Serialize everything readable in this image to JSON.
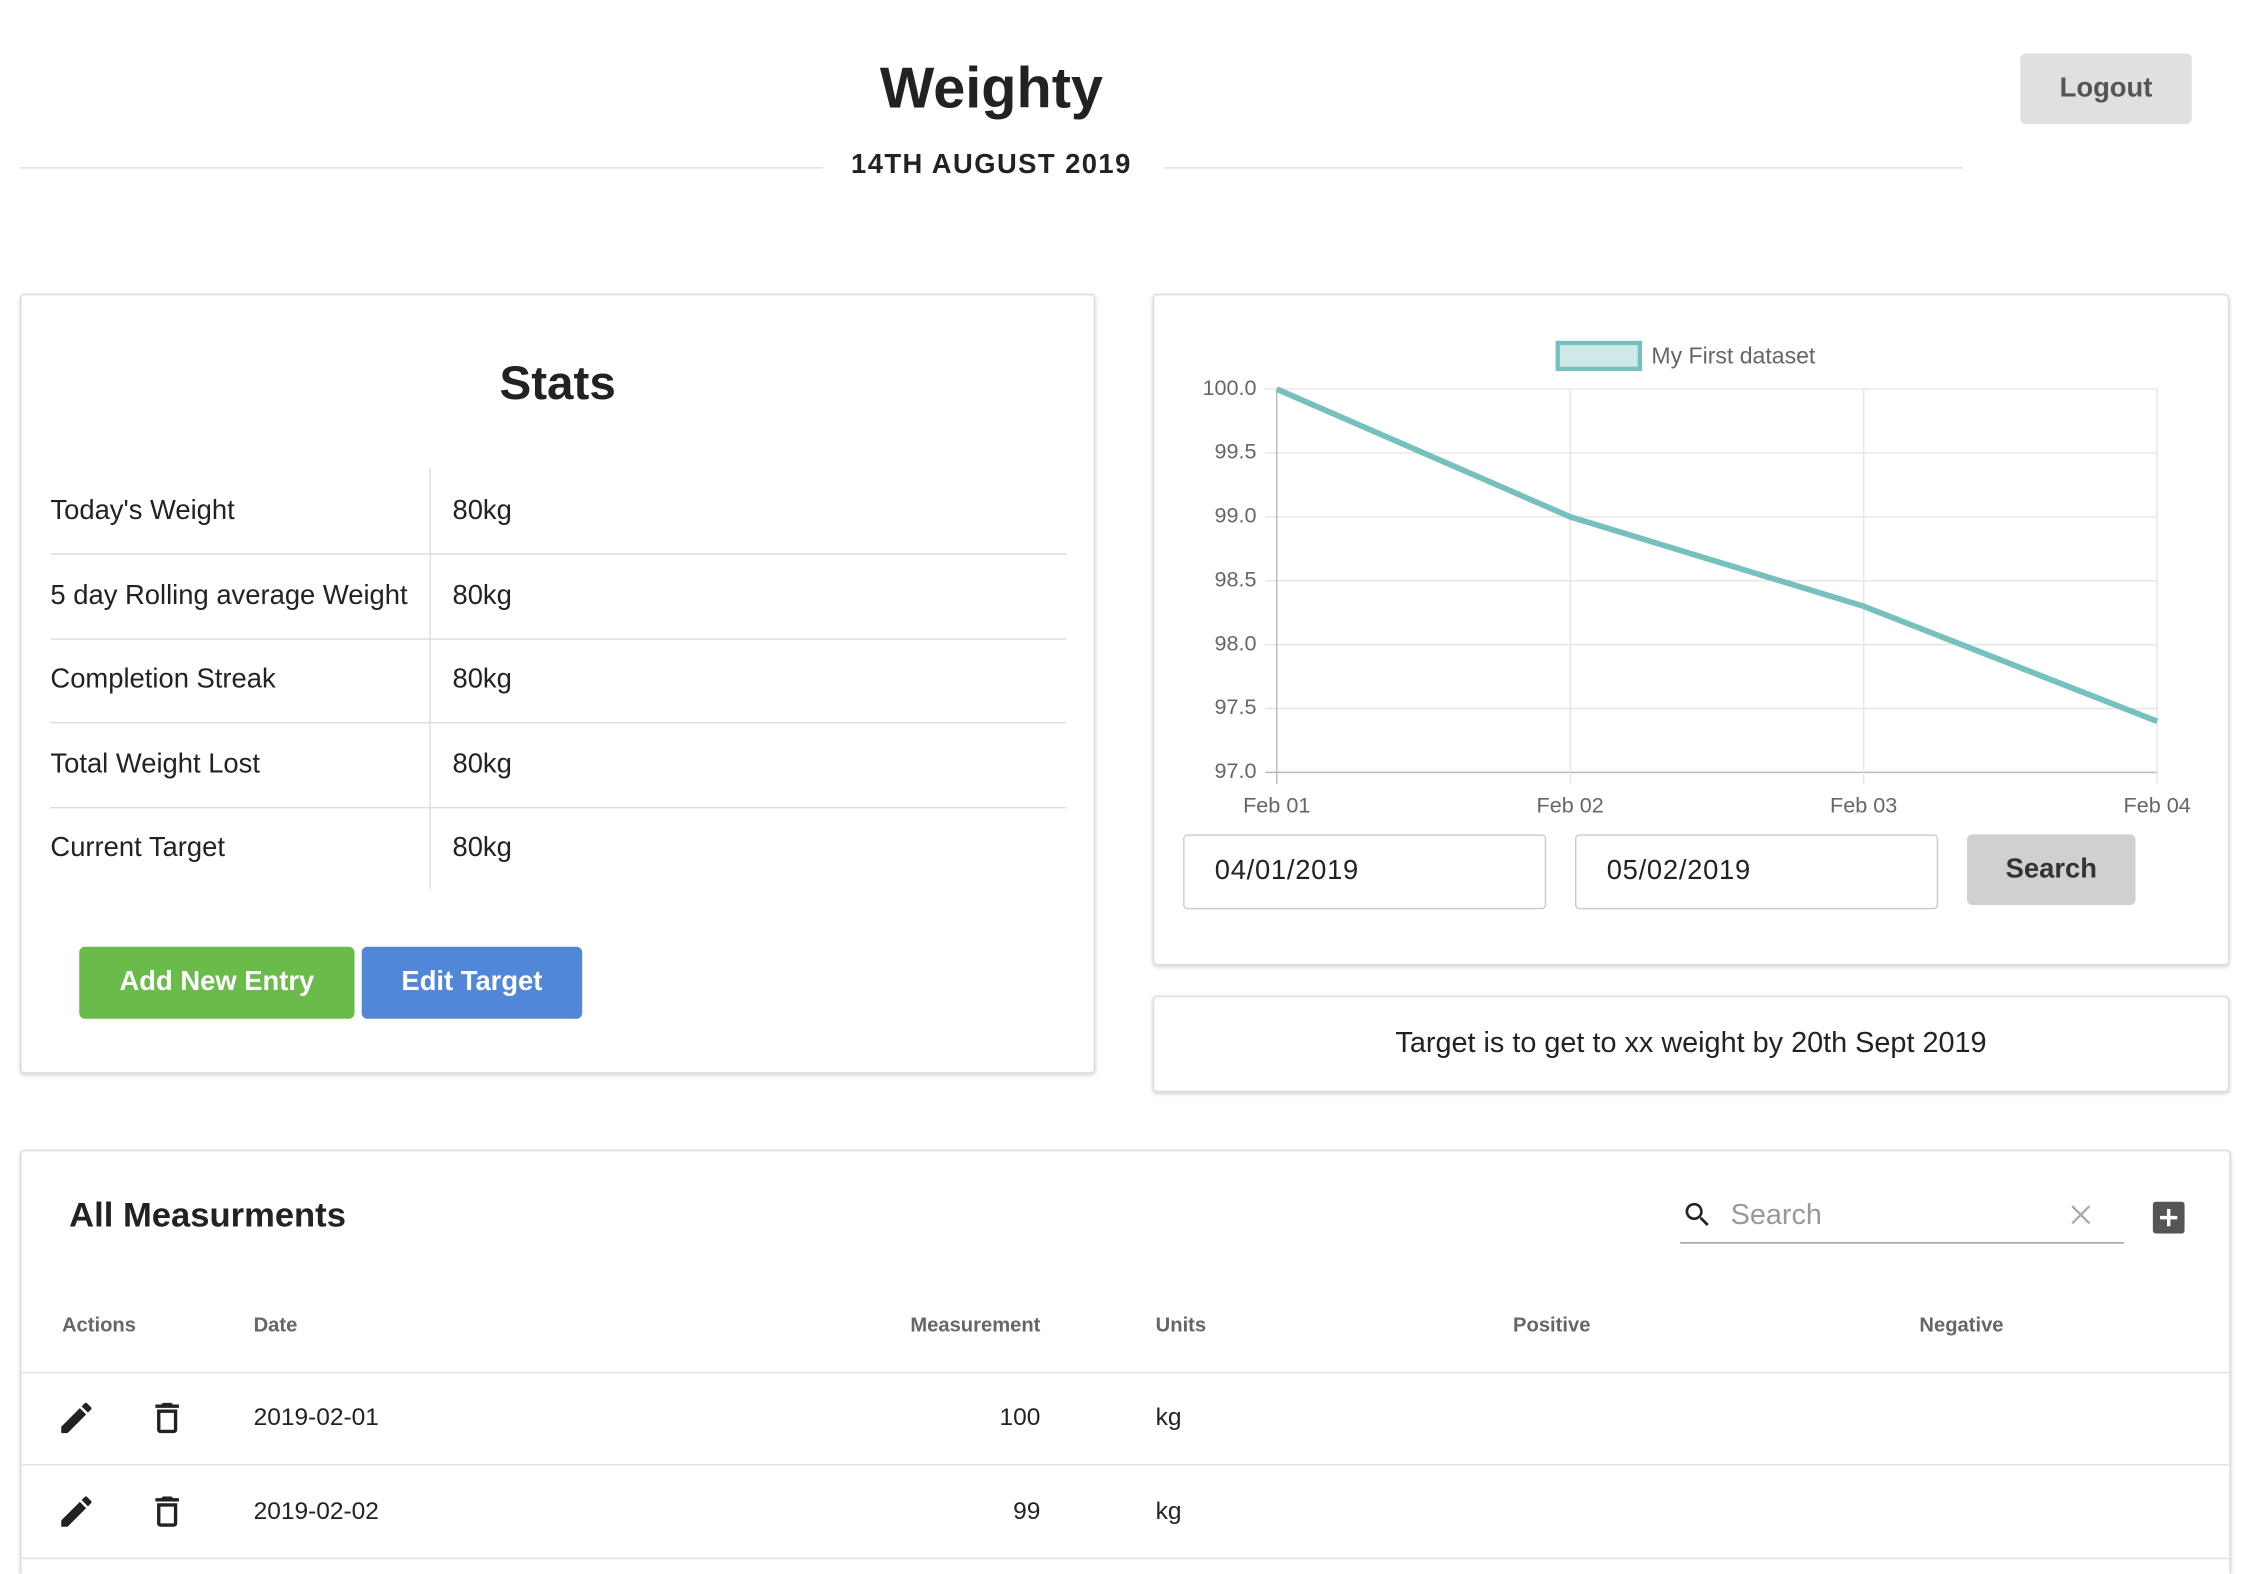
{
  "header": {
    "title": "Weighty",
    "date": "14TH AUGUST 2019",
    "logout": "Logout"
  },
  "stats": {
    "title": "Stats",
    "rows": [
      [
        "Today's Weight",
        "80kg"
      ],
      [
        "5 day Rolling average Weight",
        "80kg"
      ],
      [
        "Completion Streak",
        "80kg"
      ],
      [
        "Total Weight Lost",
        "80kg"
      ],
      [
        "Current Target",
        "80kg"
      ]
    ],
    "buttons": [
      "Add New Entry",
      "Edit Target"
    ]
  },
  "chart_data": {
    "type": "line",
    "categories": [
      "Feb 01",
      "Feb 02",
      "Feb 03",
      "Feb 04"
    ],
    "series": [
      {
        "name": "My First dataset",
        "color": "#76c1bd",
        "values": [
          100,
          99,
          98.3,
          97.4
        ]
      }
    ],
    "ylim": [
      97,
      100
    ],
    "yticks": [
      {
        "value": 97,
        "label": "97.0"
      },
      {
        "value": 97.5,
        "label": "97.5"
      },
      {
        "value": 98,
        "label": "98.0"
      },
      {
        "value": 98.5,
        "label": "98.5"
      },
      {
        "value": 99,
        "label": "99.0"
      },
      {
        "value": 99.5,
        "label": "99.5"
      },
      {
        "value": 100,
        "label": "100.0"
      }
    ],
    "grid": true,
    "legend": "top"
  },
  "date_filter": {
    "from": "04/01/2019",
    "to": "05/02/2019",
    "button": "Search"
  },
  "target": "Target is to get to xx weight by 20th Sept 2019",
  "measurements": {
    "title": "All Measurments",
    "search_placeholder": "Search",
    "columns": [
      "Actions",
      "Date",
      "Measurement",
      "Units",
      "Positive",
      "Negative"
    ],
    "rows": [
      [
        "2019-02-01",
        100,
        "kg"
      ],
      [
        "2019-02-02",
        99,
        "kg"
      ]
    ]
  }
}
